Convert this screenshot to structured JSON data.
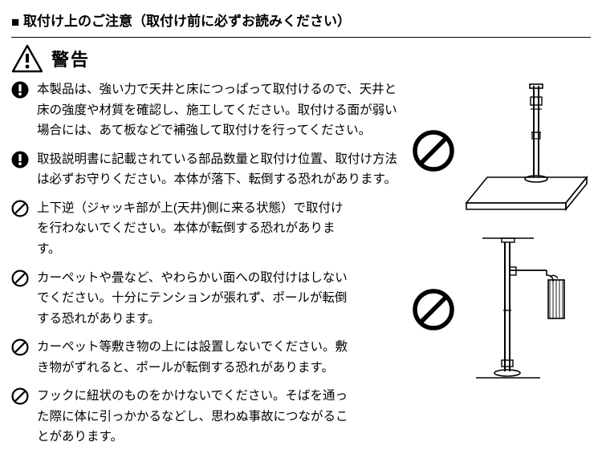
{
  "header": {
    "title": "取付け上のご注意（取付け前に必ずお読みください）",
    "warning_label": "警告"
  },
  "bullets": [
    {
      "icon": "exclaim",
      "width": "full",
      "text": "本製品は、強い力で天井と床につっぱって取付けるので、天井と床の強度や材質を確認し、施工してください。取付ける面が弱い場合には、あて板などで補強して取付けを行ってください。"
    },
    {
      "icon": "exclaim",
      "width": "full",
      "text": "取扱説明書に記載されている部品数量と取付け位置、取付け方法は必ずお守りください。本体が落下、転倒する恐れがあります。"
    },
    {
      "icon": "prohibit",
      "width": "narrow",
      "text": "上下逆（ジャッキ部が上(天井)側に来る状態）で取付けを行わないでください。本体が転倒する恐れがあります。"
    },
    {
      "icon": "prohibit",
      "width": "narrow",
      "text": "カーペットや畳など、やわらかい面への取付けはしないでください。十分にテンションが張れず、ポールが転倒する恐れがあります。"
    },
    {
      "icon": "prohibit",
      "width": "narrow",
      "text": "カーペット等敷き物の上には設置しないでください。敷き物がずれると、ポールが転倒する恐れがあります。"
    },
    {
      "icon": "prohibit",
      "width": "narrow",
      "text": "フックに紐状のものをかけないでください。そばを通った際に体に引っかかるなどし、思わぬ事故につながることがあります。"
    }
  ],
  "icons": {
    "fill": "#000000",
    "stroke": "#000000",
    "prohibit_stroke_width": 2.2
  },
  "figures": [
    {
      "type": "pole-upside-down"
    },
    {
      "type": "pole-hook"
    }
  ]
}
